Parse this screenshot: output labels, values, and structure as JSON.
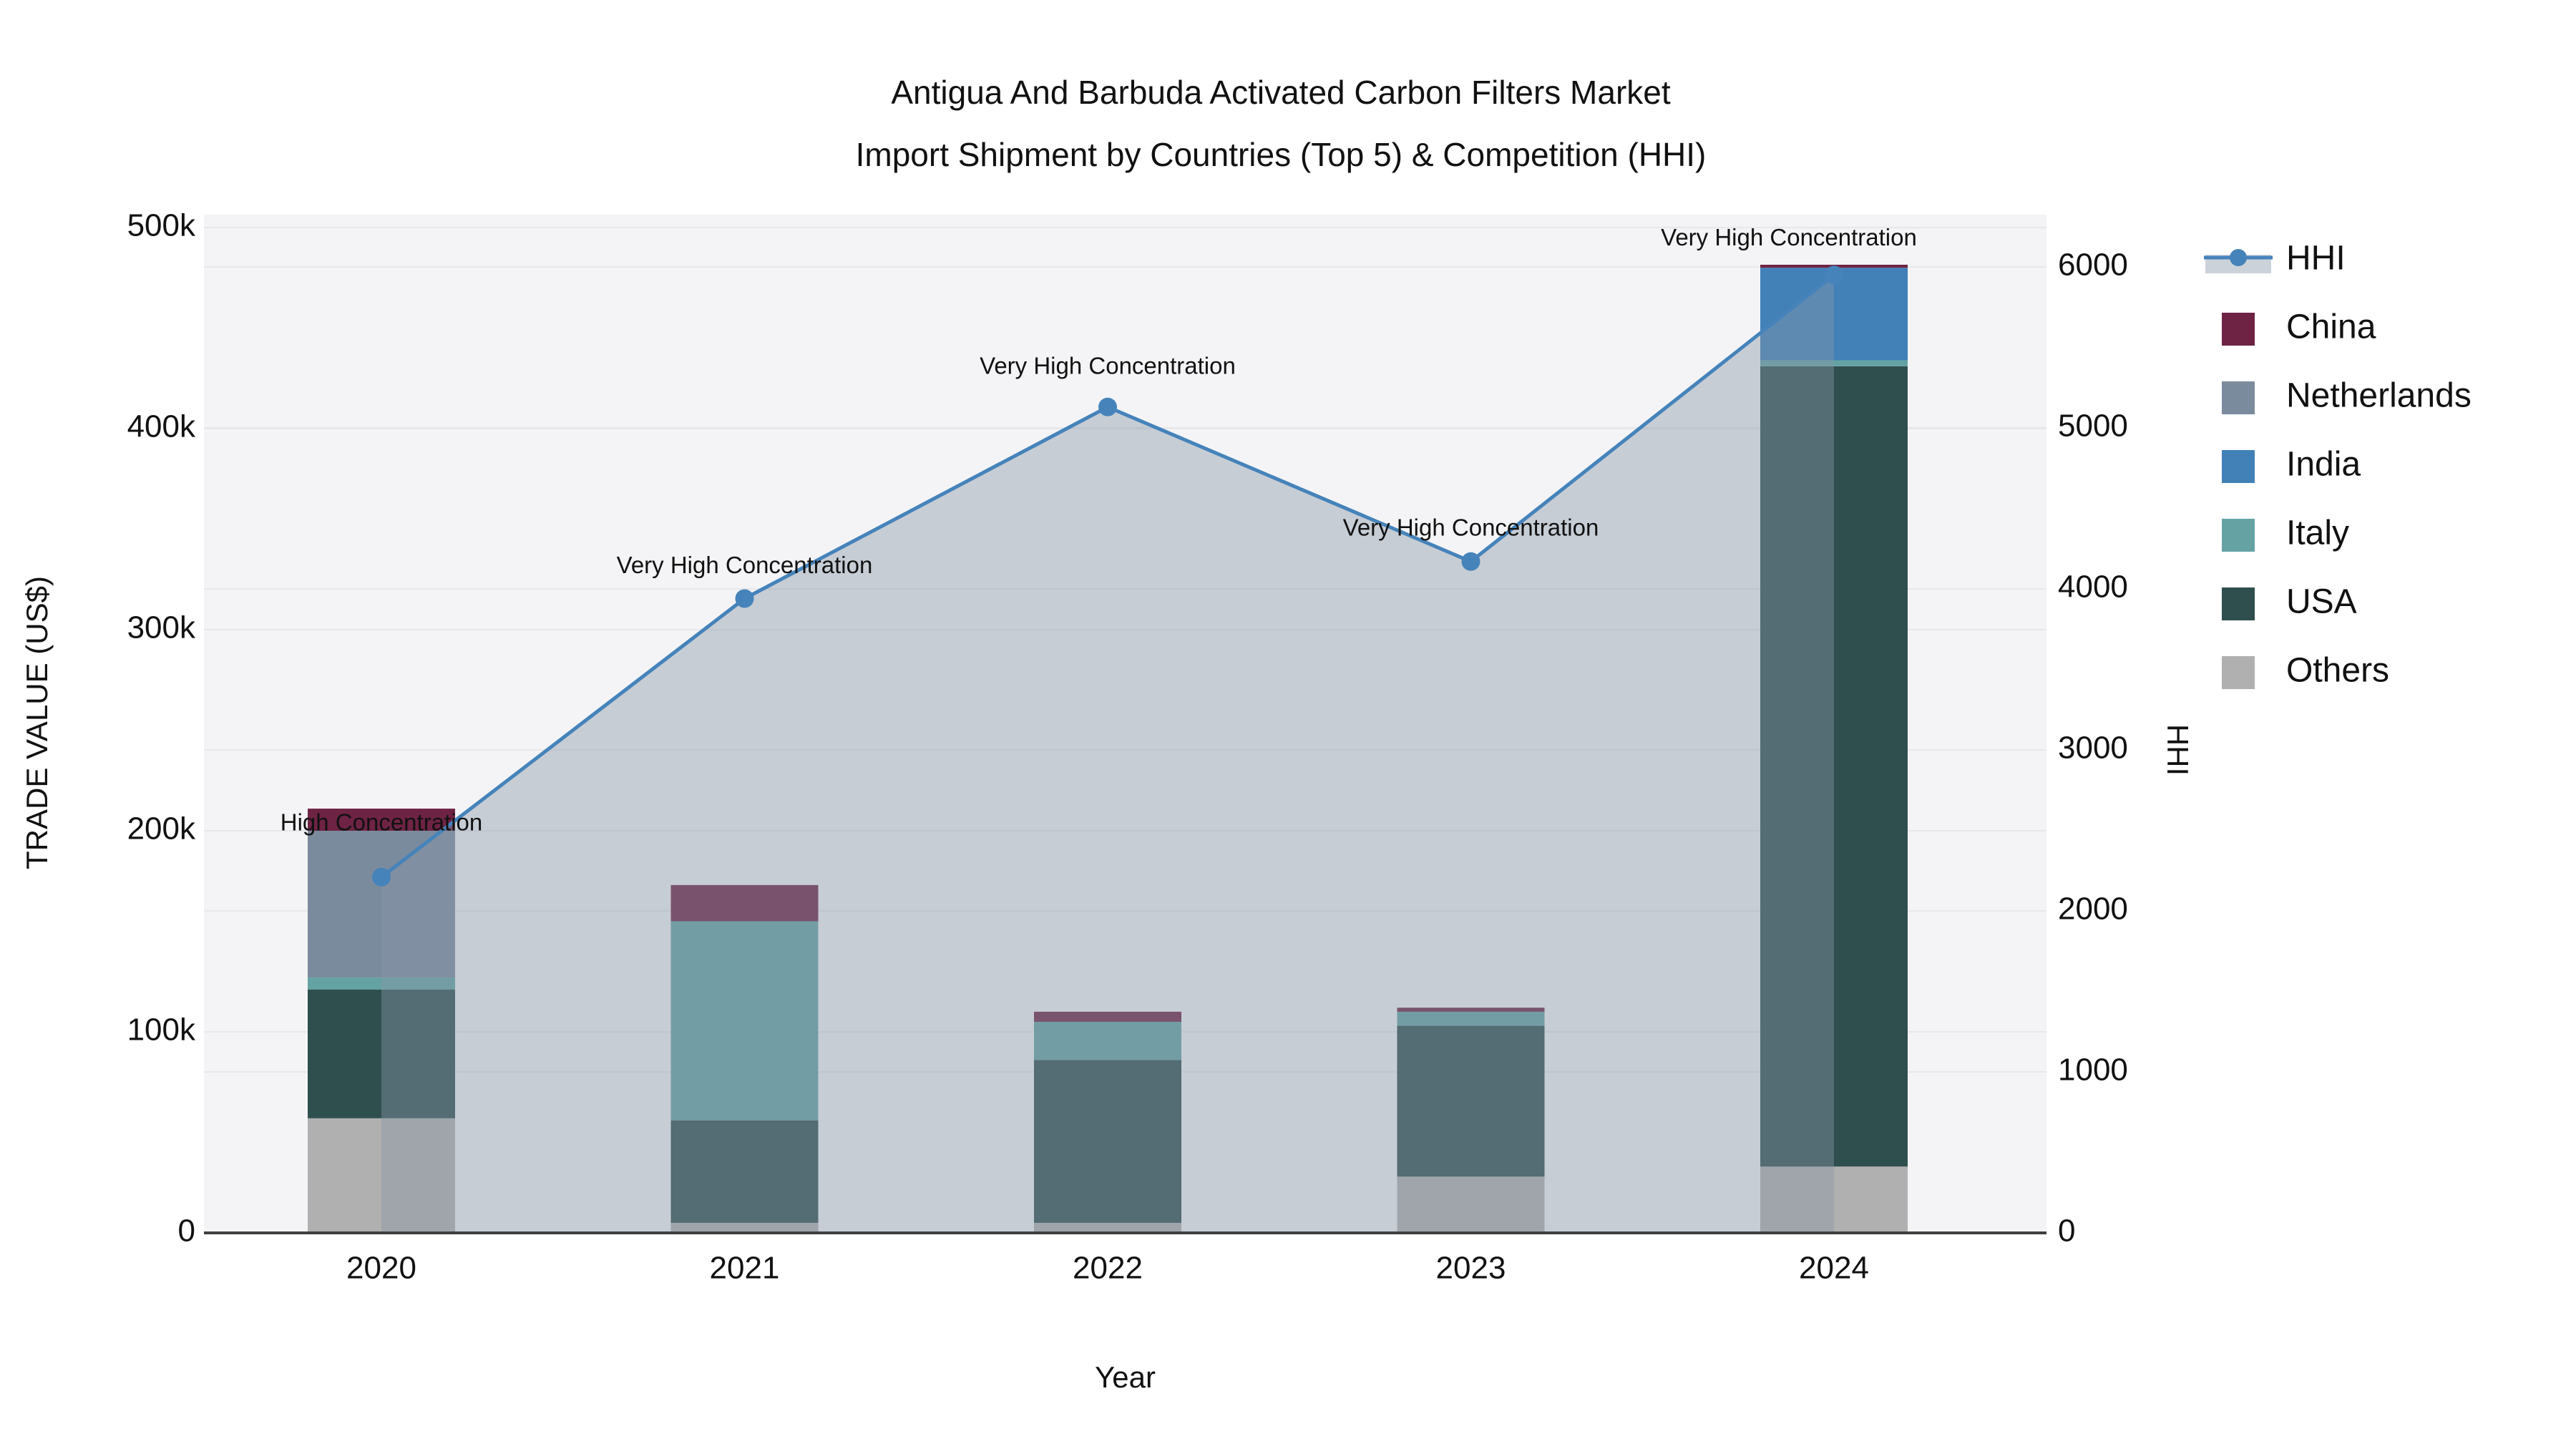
{
  "chart_data": {
    "type": "combo-stacked-bar-line",
    "title_lines": [
      "Antigua And Barbuda Activated Carbon Filters Market",
      "Import Shipment by Countries (Top 5) & Competition (HHI)"
    ],
    "categories": [
      "2020",
      "2021",
      "2022",
      "2023",
      "2024"
    ],
    "series": [
      {
        "name": "China",
        "color": "#6e2344",
        "values": [
          11000,
          18000,
          5000,
          2000,
          1500
        ]
      },
      {
        "name": "Netherlands",
        "color": "#7b8b9e",
        "values": [
          73000,
          0,
          0,
          0,
          0
        ]
      },
      {
        "name": "India",
        "color": "#4181b8",
        "values": [
          0,
          0,
          0,
          0,
          46000
        ]
      },
      {
        "name": "Italy",
        "color": "#64a2a3",
        "values": [
          6000,
          99000,
          19000,
          7000,
          3000
        ]
      },
      {
        "name": "USA",
        "color": "#2f4f4e",
        "values": [
          64000,
          51000,
          81000,
          75000,
          398000
        ]
      },
      {
        "name": "Others",
        "color": "#b1b0b0",
        "values": [
          57000,
          5000,
          5000,
          28000,
          33000
        ]
      }
    ],
    "stack_order": [
      "Others",
      "USA",
      "Italy",
      "Netherlands",
      "India",
      "China"
    ],
    "hhi": {
      "name": "HHI",
      "line_color": "#4583ba",
      "area_color": "rgba(136,150,168,0.42)",
      "values": [
        2210,
        3940,
        5130,
        4170,
        5950
      ],
      "annotations": [
        "High Concentration",
        "Very High Concentration",
        "Very High Concentration",
        "Very High Concentration",
        "Very High Concentration"
      ]
    },
    "axes": {
      "left": {
        "title": "TRADE VALUE (US$)",
        "ticks": [
          "0",
          "100k",
          "200k",
          "300k",
          "400k",
          "500k"
        ],
        "range": [
          0,
          500000
        ],
        "grid": true
      },
      "right": {
        "title": "HHI",
        "ticks": [
          "0",
          "1000",
          "2000",
          "3000",
          "4000",
          "5000",
          "6000"
        ],
        "range": [
          0,
          6000
        ],
        "grid": true
      },
      "x": {
        "title": "Year"
      }
    },
    "legend": {
      "position": "right",
      "items": [
        {
          "label": "HHI",
          "type": "line"
        },
        {
          "label": "China",
          "type": "square"
        },
        {
          "label": "Netherlands",
          "type": "square"
        },
        {
          "label": "India",
          "type": "square"
        },
        {
          "label": "Italy",
          "type": "square"
        },
        {
          "label": "USA",
          "type": "square"
        },
        {
          "label": "Others",
          "type": "square"
        }
      ]
    },
    "colors": {
      "plot_bg": "#f4f4f6",
      "grid": "#e7e7ea",
      "axis_line": "#3f3f3f",
      "text": "#111111"
    }
  }
}
